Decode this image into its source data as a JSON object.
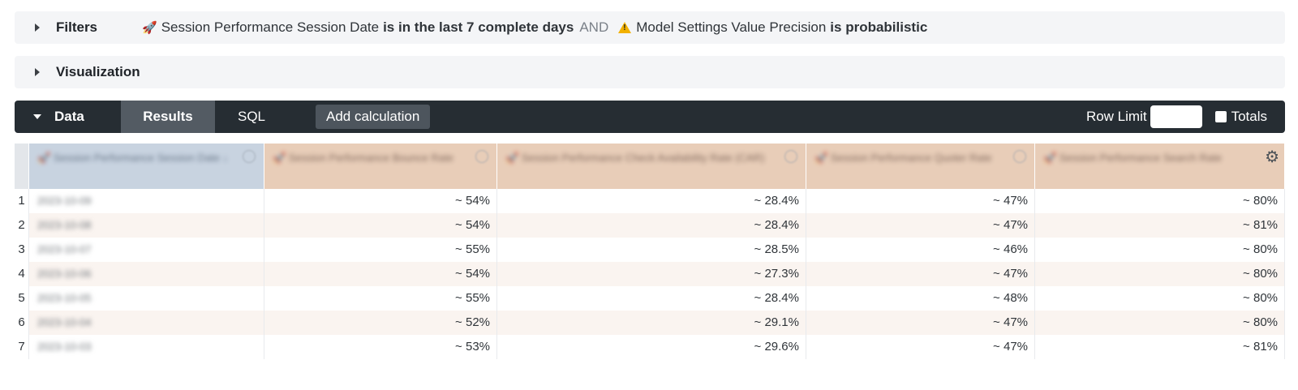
{
  "filters": {
    "label": "Filters",
    "f1_emoji": "🚀",
    "f1_field": "Session Performance Session Date",
    "f1_cond": "is in the last 7 complete days",
    "joiner": "AND",
    "f2_field": "Model Settings Value Precision",
    "f2_cond": "is probabilistic"
  },
  "visualization": {
    "label": "Visualization"
  },
  "databar": {
    "title": "Data",
    "tab_results": "Results",
    "tab_sql": "SQL",
    "add_calc": "Add calculation",
    "row_limit": "Row Limit",
    "totals": "Totals"
  },
  "table": {
    "headers": [
      "🚀 Session Performance Session Date ↓",
      "🚀 Session Performance Bounce Rate",
      "🚀 Session Performance Check Availability Rate (CAR)",
      "🚀 Session Performance Quoter Rate",
      "🚀 Session Performance Search Rate"
    ],
    "rows": [
      {
        "idx": "1",
        "date": "2023-10-09",
        "c1": "~ 54%",
        "c2": "~ 28.4%",
        "c3": "~ 47%",
        "c4": "~ 80%"
      },
      {
        "idx": "2",
        "date": "2023-10-08",
        "c1": "~ 54%",
        "c2": "~ 28.4%",
        "c3": "~ 47%",
        "c4": "~ 81%"
      },
      {
        "idx": "3",
        "date": "2023-10-07",
        "c1": "~ 55%",
        "c2": "~ 28.5%",
        "c3": "~ 46%",
        "c4": "~ 80%"
      },
      {
        "idx": "4",
        "date": "2023-10-06",
        "c1": "~ 54%",
        "c2": "~ 27.3%",
        "c3": "~ 47%",
        "c4": "~ 80%"
      },
      {
        "idx": "5",
        "date": "2023-10-05",
        "c1": "~ 55%",
        "c2": "~ 28.4%",
        "c3": "~ 48%",
        "c4": "~ 80%"
      },
      {
        "idx": "6",
        "date": "2023-10-04",
        "c1": "~ 52%",
        "c2": "~ 29.1%",
        "c3": "~ 47%",
        "c4": "~ 80%"
      },
      {
        "idx": "7",
        "date": "2023-10-03",
        "c1": "~ 53%",
        "c2": "~ 29.6%",
        "c3": "~ 47%",
        "c4": "~ 81%"
      }
    ]
  },
  "icons": {
    "caret_right": "caret-right-icon",
    "caret_down": "caret-down-icon",
    "warning": "warning-icon",
    "gear": "gear-icon",
    "info": "info-icon"
  }
}
